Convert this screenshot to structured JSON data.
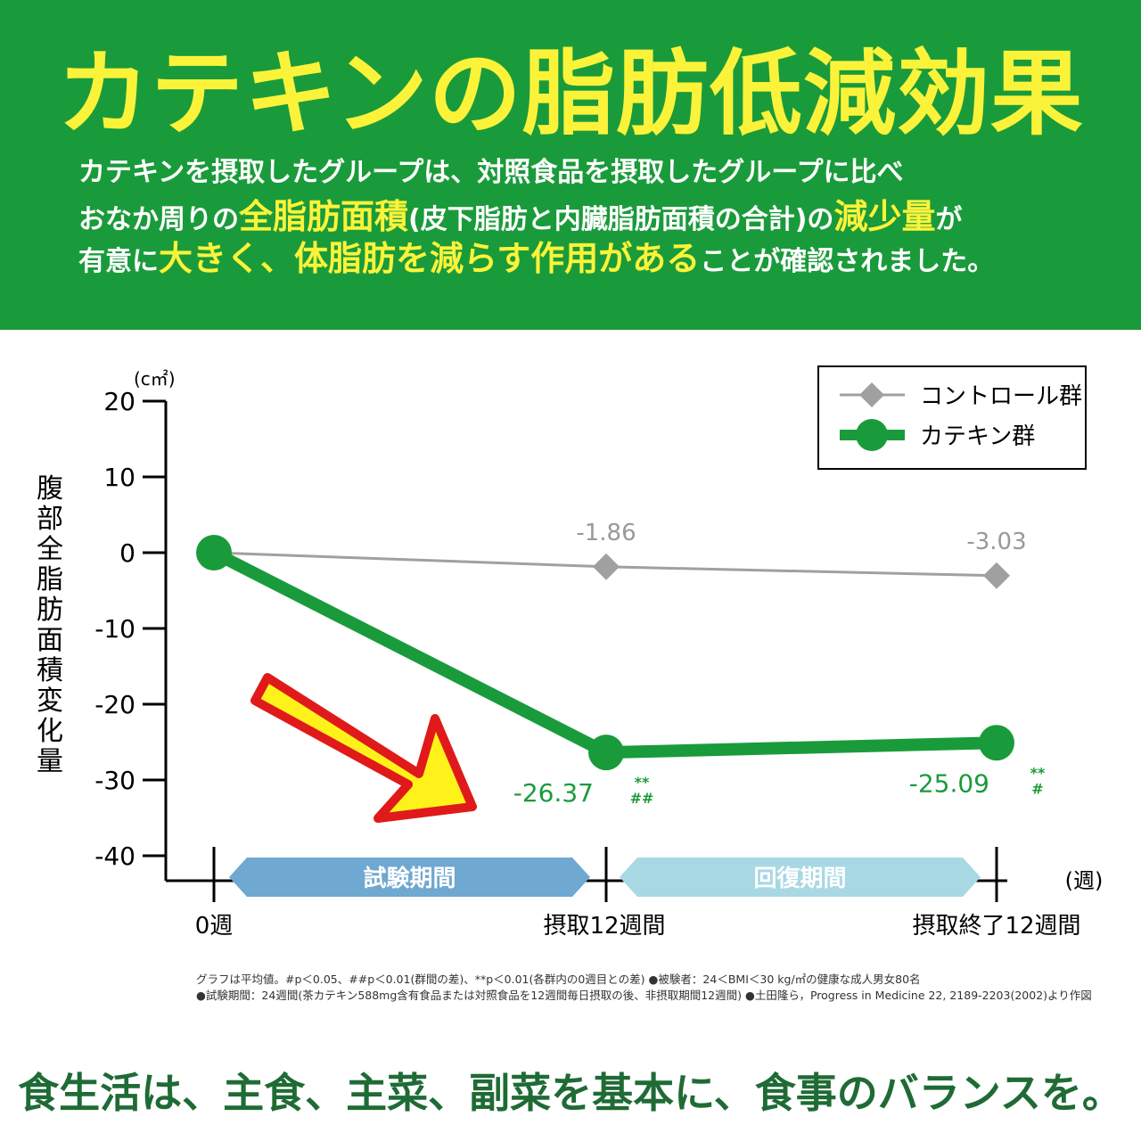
{
  "header": {
    "title": "カテキンの脂肪低減効果",
    "line1": "カテキンを摂取したグループは、対照食品を摂取したグループに比べ",
    "line2": [
      {
        "t": "おなか周りの",
        "hl": false
      },
      {
        "t": "全脂肪面積",
        "hl": true
      },
      {
        "t": "(皮下脂肪と内臓脂肪面積の合計)の",
        "hl": false
      },
      {
        "t": "減少量",
        "hl": true
      },
      {
        "t": "が",
        "hl": false
      }
    ],
    "line3": [
      {
        "t": "有意に",
        "hl": false
      },
      {
        "t": "大きく、体脂肪を減らす作用がある",
        "hl": true
      },
      {
        "t": "ことが確認されました。",
        "hl": false
      }
    ]
  },
  "chart_data": {
    "type": "line",
    "unit": "(c㎡)",
    "ylabel": "腹部全脂肪面積変化量",
    "xunit": "(週)",
    "ylim": [
      -40,
      20
    ],
    "yticks": [
      20,
      10,
      0,
      -10,
      -20,
      -30,
      -40
    ],
    "categories": [
      "0週",
      "摂取12週間",
      "摂取終了12週間"
    ],
    "series": [
      {
        "name": "コントロール群",
        "values": [
          0,
          -1.86,
          -3.03
        ],
        "color": "#a0a0a0",
        "marker": "diamond",
        "labels": [
          "",
          "-1.86",
          "-3.03"
        ],
        "sig": [
          "",
          "",
          ""
        ]
      },
      {
        "name": "カテキン群",
        "values": [
          0,
          -26.37,
          -25.09
        ],
        "color": "#1a9b3b",
        "marker": "circle",
        "labels": [
          "",
          "-26.37",
          "-25.09"
        ],
        "sig": [
          "",
          "**|##",
          "**|#"
        ]
      }
    ],
    "periods": [
      {
        "label": "試験期間",
        "color": "#6fa8d0"
      },
      {
        "label": "回復期間",
        "color": "#a8d8e4"
      }
    ],
    "legend": "top-right",
    "arrow_color": "#fff21a",
    "arrow_border": "#e01a1a"
  },
  "notes": {
    "line1": "グラフは平均値。#p＜0.05、##p＜0.01(群間の差)、**p＜0.01(各群内の0週目との差) ●被験者：24＜BMI＜30 kg/㎡の健康な成人男女80名",
    "line2": "●試験期間：24週間(茶カテキン588mg含有食品または対照食品を12週間毎日摂取の後、非摂取期間12週間) ●土田隆ら，Progress in Medicine 22, 2189-2203(2002)より作図"
  },
  "footer": "食生活は、主食、主菜、副菜を基本に、食事のバランスを。"
}
